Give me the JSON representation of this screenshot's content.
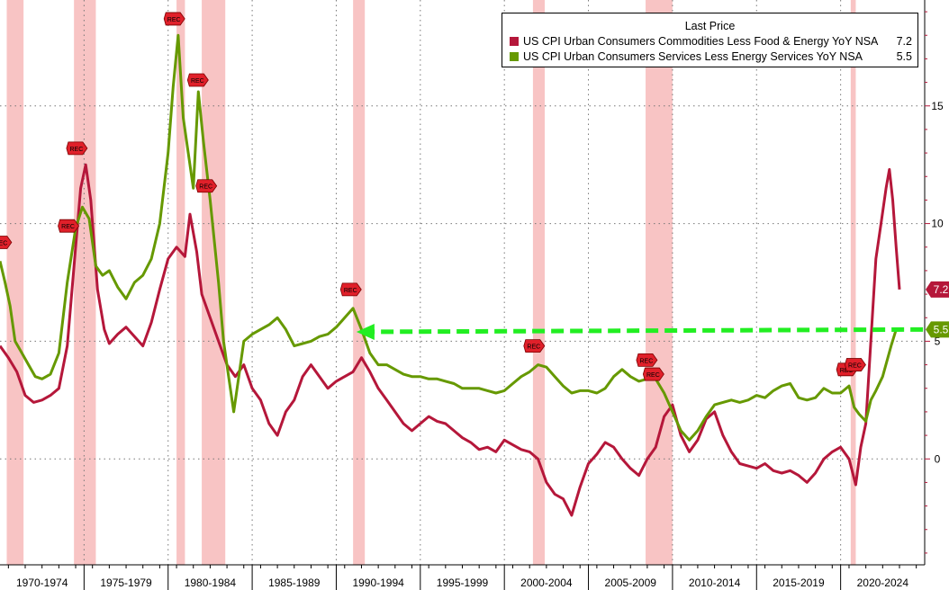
{
  "chart_data": {
    "type": "line",
    "legend_title": "Last Price",
    "legend_position": "top-right",
    "grid": true,
    "x_range": [
      1969.5,
      2024.5
    ],
    "ylim": [
      -4.5,
      19.5
    ],
    "y_ticks": [
      "0",
      "5",
      "10",
      "15"
    ],
    "y_tick_values": [
      0,
      5,
      10,
      15
    ],
    "x_labels": [
      "1970-1974",
      "1975-1979",
      "1980-1984",
      "1985-1989",
      "1990-1994",
      "1995-1999",
      "2000-2004",
      "2005-2009",
      "2010-2014",
      "2015-2019",
      "2020-2024"
    ],
    "x_label_centers": [
      1972.0,
      1977.0,
      1982.0,
      1987.0,
      1992.0,
      1997.0,
      2002.0,
      2007.0,
      2012.0,
      2017.0,
      2022.0
    ],
    "recessions": [
      [
        1969.9,
        1970.9
      ],
      [
        1973.9,
        1975.2
      ],
      [
        1980.0,
        1980.5
      ],
      [
        1981.5,
        1982.9
      ],
      [
        1990.5,
        1991.2
      ],
      [
        2001.2,
        2001.9
      ],
      [
        2007.9,
        2009.5
      ],
      [
        2020.1,
        2020.4
      ]
    ],
    "rec_label": "REC",
    "rec_markers": [
      [
        1969.6,
        9.2
      ],
      [
        1973.6,
        9.9
      ],
      [
        1974.1,
        13.2
      ],
      [
        1979.9,
        18.7
      ],
      [
        1981.3,
        16.1
      ],
      [
        1981.8,
        11.6
      ],
      [
        1990.4,
        7.2
      ],
      [
        2001.3,
        4.8
      ],
      [
        2008.0,
        4.2
      ],
      [
        2008.4,
        3.6
      ],
      [
        2019.9,
        3.8
      ],
      [
        2020.4,
        4.0
      ]
    ],
    "annotation": {
      "type": "dashed-arrow",
      "color": "#22ee22",
      "from": [
        2024.4,
        5.5
      ],
      "to": [
        1990.7,
        5.4
      ]
    },
    "series": [
      {
        "name": "US CPI Urban Consumers Commodities Less Food & Energy YoY NSA",
        "last_value": "7.2",
        "color": "#b5173a",
        "points": [
          [
            1969.5,
            4.8
          ],
          [
            1970.0,
            4.3
          ],
          [
            1970.5,
            3.7
          ],
          [
            1971.0,
            2.7
          ],
          [
            1971.5,
            2.4
          ],
          [
            1972.0,
            2.5
          ],
          [
            1972.5,
            2.7
          ],
          [
            1973.0,
            3.0
          ],
          [
            1973.5,
            4.8
          ],
          [
            1974.0,
            9.0
          ],
          [
            1974.3,
            11.5
          ],
          [
            1974.6,
            12.5
          ],
          [
            1974.9,
            11.0
          ],
          [
            1975.3,
            7.2
          ],
          [
            1975.7,
            5.5
          ],
          [
            1976.0,
            4.9
          ],
          [
            1976.5,
            5.3
          ],
          [
            1977.0,
            5.6
          ],
          [
            1977.5,
            5.2
          ],
          [
            1978.0,
            4.8
          ],
          [
            1978.5,
            5.8
          ],
          [
            1979.0,
            7.2
          ],
          [
            1979.5,
            8.5
          ],
          [
            1980.0,
            9.0
          ],
          [
            1980.5,
            8.6
          ],
          [
            1980.8,
            10.4
          ],
          [
            1981.2,
            8.8
          ],
          [
            1981.5,
            7.0
          ],
          [
            1982.0,
            6.0
          ],
          [
            1982.5,
            5.0
          ],
          [
            1983.0,
            4.0
          ],
          [
            1983.5,
            3.5
          ],
          [
            1984.0,
            4.0
          ],
          [
            1984.5,
            3.0
          ],
          [
            1985.0,
            2.5
          ],
          [
            1985.5,
            1.5
          ],
          [
            1986.0,
            1.0
          ],
          [
            1986.5,
            2.0
          ],
          [
            1987.0,
            2.5
          ],
          [
            1987.5,
            3.5
          ],
          [
            1988.0,
            4.0
          ],
          [
            1988.5,
            3.5
          ],
          [
            1989.0,
            3.0
          ],
          [
            1989.5,
            3.3
          ],
          [
            1990.0,
            3.5
          ],
          [
            1990.5,
            3.7
          ],
          [
            1991.0,
            4.3
          ],
          [
            1991.5,
            3.7
          ],
          [
            1992.0,
            3.0
          ],
          [
            1992.5,
            2.5
          ],
          [
            1993.0,
            2.0
          ],
          [
            1993.5,
            1.5
          ],
          [
            1994.0,
            1.2
          ],
          [
            1994.5,
            1.5
          ],
          [
            1995.0,
            1.8
          ],
          [
            1995.5,
            1.6
          ],
          [
            1996.0,
            1.5
          ],
          [
            1996.5,
            1.2
          ],
          [
            1997.0,
            0.9
          ],
          [
            1997.5,
            0.7
          ],
          [
            1998.0,
            0.4
          ],
          [
            1998.5,
            0.5
          ],
          [
            1999.0,
            0.3
          ],
          [
            1999.5,
            0.8
          ],
          [
            2000.0,
            0.6
          ],
          [
            2000.5,
            0.4
          ],
          [
            2001.0,
            0.3
          ],
          [
            2001.5,
            0.0
          ],
          [
            2002.0,
            -1.0
          ],
          [
            2002.5,
            -1.5
          ],
          [
            2003.0,
            -1.7
          ],
          [
            2003.5,
            -2.4
          ],
          [
            2004.0,
            -1.2
          ],
          [
            2004.5,
            -0.2
          ],
          [
            2005.0,
            0.2
          ],
          [
            2005.5,
            0.7
          ],
          [
            2006.0,
            0.5
          ],
          [
            2006.5,
            0.0
          ],
          [
            2007.0,
            -0.4
          ],
          [
            2007.5,
            -0.7
          ],
          [
            2008.0,
            0.0
          ],
          [
            2008.5,
            0.5
          ],
          [
            2009.0,
            1.8
          ],
          [
            2009.5,
            2.3
          ],
          [
            2010.0,
            1.0
          ],
          [
            2010.5,
            0.3
          ],
          [
            2011.0,
            0.8
          ],
          [
            2011.5,
            1.7
          ],
          [
            2012.0,
            2.0
          ],
          [
            2012.5,
            1.0
          ],
          [
            2013.0,
            0.3
          ],
          [
            2013.5,
            -0.2
          ],
          [
            2014.0,
            -0.3
          ],
          [
            2014.5,
            -0.4
          ],
          [
            2015.0,
            -0.2
          ],
          [
            2015.5,
            -0.5
          ],
          [
            2016.0,
            -0.6
          ],
          [
            2016.5,
            -0.5
          ],
          [
            2017.0,
            -0.7
          ],
          [
            2017.5,
            -1.0
          ],
          [
            2018.0,
            -0.6
          ],
          [
            2018.5,
            0.0
          ],
          [
            2019.0,
            0.3
          ],
          [
            2019.5,
            0.5
          ],
          [
            2020.0,
            0.0
          ],
          [
            2020.4,
            -1.1
          ],
          [
            2020.7,
            0.5
          ],
          [
            2021.0,
            1.5
          ],
          [
            2021.3,
            5.0
          ],
          [
            2021.6,
            8.5
          ],
          [
            2021.9,
            10.0
          ],
          [
            2022.2,
            11.5
          ],
          [
            2022.4,
            12.3
          ],
          [
            2022.6,
            11.0
          ],
          [
            2022.8,
            9.0
          ],
          [
            2023.0,
            7.2
          ]
        ]
      },
      {
        "name": "US CPI Urban Consumers Services Less Energy Services YoY NSA",
        "last_value": "5.5",
        "color": "#669900",
        "points": [
          [
            1969.5,
            8.4
          ],
          [
            1969.8,
            7.5
          ],
          [
            1970.1,
            6.5
          ],
          [
            1970.4,
            5.0
          ],
          [
            1970.8,
            4.5
          ],
          [
            1971.2,
            4.0
          ],
          [
            1971.6,
            3.5
          ],
          [
            1972.0,
            3.4
          ],
          [
            1972.5,
            3.6
          ],
          [
            1973.0,
            4.5
          ],
          [
            1973.5,
            7.5
          ],
          [
            1974.0,
            9.8
          ],
          [
            1974.4,
            10.7
          ],
          [
            1974.8,
            10.2
          ],
          [
            1975.2,
            8.2
          ],
          [
            1975.6,
            7.8
          ],
          [
            1976.0,
            8.0
          ],
          [
            1976.5,
            7.3
          ],
          [
            1977.0,
            6.8
          ],
          [
            1977.5,
            7.5
          ],
          [
            1978.0,
            7.8
          ],
          [
            1978.5,
            8.5
          ],
          [
            1979.0,
            10.0
          ],
          [
            1979.5,
            13.0
          ],
          [
            1979.8,
            15.8
          ],
          [
            1980.1,
            18.0
          ],
          [
            1980.4,
            14.5
          ],
          [
            1980.7,
            13.0
          ],
          [
            1981.0,
            11.5
          ],
          [
            1981.3,
            15.6
          ],
          [
            1981.6,
            13.5
          ],
          [
            1982.0,
            11.0
          ],
          [
            1982.5,
            7.5
          ],
          [
            1982.8,
            5.0
          ],
          [
            1983.1,
            3.5
          ],
          [
            1983.4,
            2.0
          ],
          [
            1983.7,
            3.5
          ],
          [
            1984.0,
            5.0
          ],
          [
            1984.5,
            5.3
          ],
          [
            1985.0,
            5.5
          ],
          [
            1985.5,
            5.7
          ],
          [
            1986.0,
            6.0
          ],
          [
            1986.5,
            5.5
          ],
          [
            1987.0,
            4.8
          ],
          [
            1987.5,
            4.9
          ],
          [
            1988.0,
            5.0
          ],
          [
            1988.5,
            5.2
          ],
          [
            1989.0,
            5.3
          ],
          [
            1989.5,
            5.6
          ],
          [
            1990.0,
            6.0
          ],
          [
            1990.5,
            6.4
          ],
          [
            1991.0,
            5.5
          ],
          [
            1991.5,
            4.5
          ],
          [
            1992.0,
            4.0
          ],
          [
            1992.5,
            4.0
          ],
          [
            1993.0,
            3.8
          ],
          [
            1993.5,
            3.6
          ],
          [
            1994.0,
            3.5
          ],
          [
            1994.5,
            3.5
          ],
          [
            1995.0,
            3.4
          ],
          [
            1995.5,
            3.4
          ],
          [
            1996.0,
            3.3
          ],
          [
            1996.5,
            3.2
          ],
          [
            1997.0,
            3.0
          ],
          [
            1997.5,
            3.0
          ],
          [
            1998.0,
            3.0
          ],
          [
            1998.5,
            2.9
          ],
          [
            1999.0,
            2.8
          ],
          [
            1999.5,
            2.9
          ],
          [
            2000.0,
            3.2
          ],
          [
            2000.5,
            3.5
          ],
          [
            2001.0,
            3.7
          ],
          [
            2001.5,
            4.0
          ],
          [
            2002.0,
            3.9
          ],
          [
            2002.5,
            3.5
          ],
          [
            2003.0,
            3.1
          ],
          [
            2003.5,
            2.8
          ],
          [
            2004.0,
            2.9
          ],
          [
            2004.5,
            2.9
          ],
          [
            2005.0,
            2.8
          ],
          [
            2005.5,
            3.0
          ],
          [
            2006.0,
            3.5
          ],
          [
            2006.5,
            3.8
          ],
          [
            2007.0,
            3.5
          ],
          [
            2007.5,
            3.3
          ],
          [
            2008.0,
            3.4
          ],
          [
            2008.5,
            3.4
          ],
          [
            2009.0,
            2.8
          ],
          [
            2009.5,
            2.0
          ],
          [
            2010.0,
            1.2
          ],
          [
            2010.5,
            0.8
          ],
          [
            2011.0,
            1.2
          ],
          [
            2011.5,
            1.8
          ],
          [
            2012.0,
            2.3
          ],
          [
            2012.5,
            2.4
          ],
          [
            2013.0,
            2.5
          ],
          [
            2013.5,
            2.4
          ],
          [
            2014.0,
            2.5
          ],
          [
            2014.5,
            2.7
          ],
          [
            2015.0,
            2.6
          ],
          [
            2015.5,
            2.9
          ],
          [
            2016.0,
            3.1
          ],
          [
            2016.5,
            3.2
          ],
          [
            2017.0,
            2.6
          ],
          [
            2017.5,
            2.5
          ],
          [
            2018.0,
            2.6
          ],
          [
            2018.5,
            3.0
          ],
          [
            2019.0,
            2.8
          ],
          [
            2019.5,
            2.8
          ],
          [
            2020.0,
            3.1
          ],
          [
            2020.3,
            2.2
          ],
          [
            2020.6,
            1.9
          ],
          [
            2021.0,
            1.6
          ],
          [
            2021.3,
            2.5
          ],
          [
            2021.6,
            2.9
          ],
          [
            2022.0,
            3.5
          ],
          [
            2022.5,
            4.8
          ],
          [
            2022.8,
            5.5
          ]
        ]
      }
    ]
  }
}
